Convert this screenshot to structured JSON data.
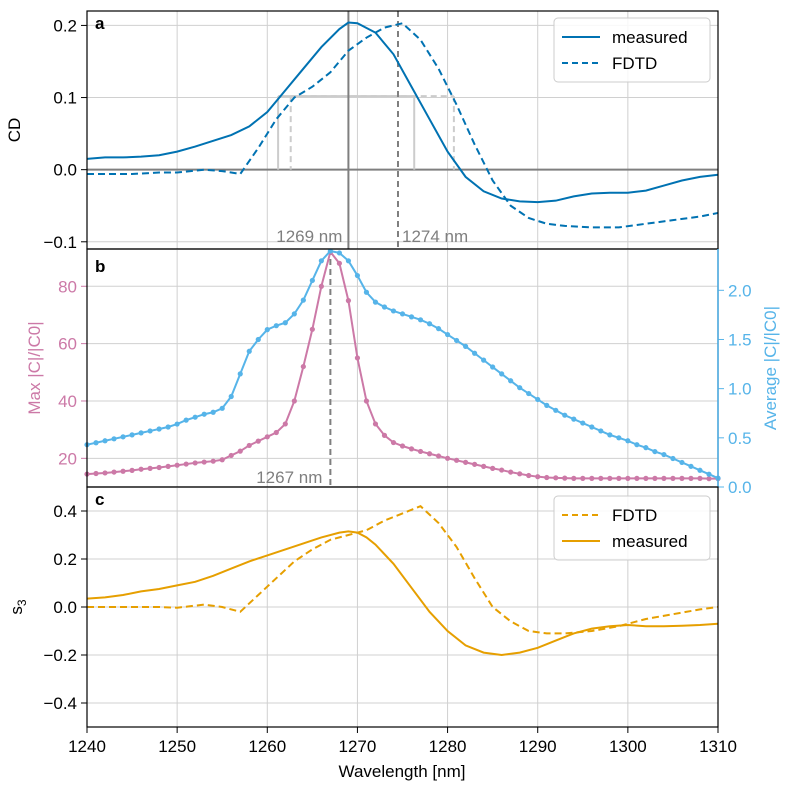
{
  "colors": {
    "blue": "#0072B2",
    "pink": "#CC79A7",
    "skyblue": "#56B4E9",
    "orange": "#E69F00",
    "gray": "#7f7f7f",
    "lightgray": "#cccccc"
  },
  "xaxis": {
    "label": "Wavelength [nm]",
    "ticks": [
      1240,
      1250,
      1260,
      1270,
      1280,
      1290,
      1300,
      1310
    ],
    "tick_labels": [
      "1240",
      "1250",
      "1260",
      "1270",
      "1280",
      "1290",
      "1300",
      "1310"
    ]
  },
  "panel_a": {
    "letter": "a",
    "annot_measured": "1269 nm",
    "annot_fdtd": "1274 nm",
    "legend": [
      "measured",
      "FDTD"
    ]
  },
  "panel_b": {
    "letter": "b",
    "annot": "1267 nm"
  },
  "panel_c": {
    "letter": "c",
    "legend": [
      "FDTD",
      "measured"
    ]
  },
  "chart_data": [
    {
      "type": "line",
      "panel": "a",
      "ylabel": "CD",
      "xlim": [
        1240,
        1310
      ],
      "ylim": [
        -0.11,
        0.22
      ],
      "yticks": [
        -0.1,
        0.0,
        0.1,
        0.2
      ],
      "ytick_labels": [
        "−0.1",
        "0.0",
        "0.1",
        "0.2"
      ],
      "grid": true,
      "legend_position": "top-right",
      "hlines": [
        0
      ],
      "peak_lines": {
        "measured": 1269,
        "FDTD": 1274.5
      },
      "half_max": {
        "measured": {
          "level": 0.102,
          "left": 1261.2,
          "right": 1276.3
        },
        "FDTD": {
          "level": 0.102,
          "left": 1262.6,
          "right": 1280.7
        }
      },
      "series": [
        {
          "name": "measured",
          "style": "solid",
          "x": [
            1240,
            1242,
            1244,
            1246,
            1248,
            1250,
            1252,
            1254,
            1256,
            1258,
            1260,
            1262,
            1264,
            1266,
            1268,
            1269,
            1270,
            1272,
            1274,
            1276,
            1278,
            1280,
            1282,
            1284,
            1286,
            1288,
            1290,
            1292,
            1294,
            1296,
            1298,
            1300,
            1302,
            1304,
            1306,
            1308,
            1310
          ],
          "y": [
            0.015,
            0.017,
            0.017,
            0.018,
            0.02,
            0.025,
            0.032,
            0.04,
            0.048,
            0.06,
            0.08,
            0.11,
            0.14,
            0.17,
            0.195,
            0.204,
            0.203,
            0.19,
            0.16,
            0.115,
            0.07,
            0.025,
            -0.01,
            -0.03,
            -0.04,
            -0.044,
            -0.045,
            -0.043,
            -0.037,
            -0.033,
            -0.032,
            -0.032,
            -0.029,
            -0.022,
            -0.015,
            -0.01,
            -0.007
          ]
        },
        {
          "name": "FDTD",
          "style": "dashed",
          "x": [
            1240,
            1245,
            1248,
            1250,
            1253,
            1255,
            1257,
            1259,
            1261,
            1263,
            1265,
            1267,
            1269,
            1271,
            1273,
            1275,
            1277,
            1279,
            1281,
            1283,
            1285,
            1287,
            1289,
            1291,
            1293,
            1296,
            1299,
            1302,
            1305,
            1308,
            1310
          ],
          "y": [
            -0.006,
            -0.006,
            -0.004,
            -0.004,
            0.0,
            -0.002,
            -0.006,
            0.03,
            0.07,
            0.1,
            0.115,
            0.135,
            0.165,
            0.183,
            0.197,
            0.203,
            0.18,
            0.14,
            0.09,
            0.035,
            -0.015,
            -0.05,
            -0.067,
            -0.075,
            -0.078,
            -0.08,
            -0.08,
            -0.075,
            -0.07,
            -0.065,
            -0.06
          ]
        }
      ]
    },
    {
      "type": "line",
      "panel": "b",
      "ylabel_left": "Max |C|/|C0|",
      "ylabel_right": "Average |C|/|C0|",
      "xlim": [
        1240,
        1310
      ],
      "ylim_left": [
        10,
        93
      ],
      "ylim_right": [
        0,
        2.42
      ],
      "yticks_left": [
        20,
        40,
        60,
        80
      ],
      "ytick_labels_left": [
        "20",
        "40",
        "60",
        "80"
      ],
      "yticks_right": [
        0,
        0.5,
        1.0,
        1.5,
        2.0
      ],
      "ytick_labels_right": [
        "0.0",
        "0.5",
        "1.0",
        "1.5",
        "2.0"
      ],
      "grid": true,
      "peak_line": 1267,
      "series": [
        {
          "name": "Max |C|/|C0|",
          "axis": "left",
          "x": [
            1240,
            1241,
            1242,
            1243,
            1244,
            1245,
            1246,
            1247,
            1248,
            1249,
            1250,
            1251,
            1252,
            1253,
            1254,
            1255,
            1256,
            1257,
            1258,
            1259,
            1260,
            1261,
            1262,
            1263,
            1264,
            1265,
            1266,
            1267,
            1268,
            1269,
            1270,
            1271,
            1272,
            1273,
            1274,
            1275,
            1276,
            1277,
            1278,
            1279,
            1280,
            1281,
            1282,
            1283,
            1284,
            1285,
            1286,
            1287,
            1288,
            1289,
            1290,
            1291,
            1292,
            1293,
            1294,
            1295,
            1296,
            1297,
            1298,
            1299,
            1300,
            1301,
            1302,
            1303,
            1304,
            1305,
            1306,
            1307,
            1308,
            1309,
            1310
          ],
          "y": [
            14.5,
            14.7,
            14.9,
            15.2,
            15.5,
            15.8,
            16.2,
            16.5,
            16.8,
            17.2,
            17.6,
            18.0,
            18.4,
            18.7,
            19.0,
            19.5,
            21.0,
            22.5,
            24.5,
            26.0,
            27.5,
            29.0,
            32.0,
            40.0,
            52.0,
            65.0,
            80.0,
            92.0,
            88.0,
            75.0,
            55.0,
            40.0,
            32.0,
            28.0,
            25.5,
            24.3,
            23.3,
            22.4,
            21.6,
            20.8,
            20.0,
            19.3,
            18.6,
            17.9,
            17.2,
            16.5,
            15.9,
            15.2,
            14.6,
            14.0,
            13.6,
            13.3,
            13.2,
            13.1,
            13.0,
            13.0,
            13.0,
            13.0,
            13.0,
            13.0,
            13.0,
            13.0,
            13.0,
            13.0,
            13.0,
            13.0,
            13.0,
            13.0,
            13.0,
            12.9,
            12.9
          ]
        },
        {
          "name": "Average |C|/|C0|",
          "axis": "right",
          "x": [
            1240,
            1241,
            1242,
            1243,
            1244,
            1245,
            1246,
            1247,
            1248,
            1249,
            1250,
            1251,
            1252,
            1253,
            1254,
            1255,
            1256,
            1257,
            1258,
            1259,
            1260,
            1261,
            1262,
            1263,
            1264,
            1265,
            1266,
            1267,
            1268,
            1269,
            1270,
            1271,
            1272,
            1273,
            1274,
            1275,
            1276,
            1277,
            1278,
            1279,
            1280,
            1281,
            1282,
            1283,
            1284,
            1285,
            1286,
            1287,
            1288,
            1289,
            1290,
            1291,
            1292,
            1293,
            1294,
            1295,
            1296,
            1297,
            1298,
            1299,
            1300,
            1301,
            1302,
            1303,
            1304,
            1305,
            1306,
            1307,
            1308,
            1309,
            1310
          ],
          "y": [
            0.43,
            0.45,
            0.47,
            0.49,
            0.51,
            0.53,
            0.55,
            0.57,
            0.59,
            0.61,
            0.64,
            0.68,
            0.71,
            0.74,
            0.76,
            0.8,
            0.92,
            1.15,
            1.38,
            1.5,
            1.6,
            1.64,
            1.67,
            1.76,
            1.9,
            2.1,
            2.3,
            2.4,
            2.38,
            2.3,
            2.15,
            1.98,
            1.88,
            1.83,
            1.79,
            1.76,
            1.73,
            1.7,
            1.66,
            1.61,
            1.55,
            1.49,
            1.43,
            1.36,
            1.29,
            1.22,
            1.15,
            1.08,
            1.01,
            0.95,
            0.89,
            0.83,
            0.78,
            0.73,
            0.69,
            0.65,
            0.61,
            0.57,
            0.53,
            0.5,
            0.47,
            0.43,
            0.4,
            0.36,
            0.33,
            0.29,
            0.25,
            0.21,
            0.17,
            0.13,
            0.09
          ]
        }
      ]
    },
    {
      "type": "line",
      "panel": "c",
      "ylabel": "s3",
      "xlim": [
        1240,
        1310
      ],
      "ylim": [
        -0.5,
        0.5
      ],
      "yticks": [
        -0.4,
        -0.2,
        0.0,
        0.2,
        0.4
      ],
      "ytick_labels": [
        "−0.4",
        "−0.2",
        "0.0",
        "0.2",
        "0.4"
      ],
      "grid": true,
      "legend_position": "top-right",
      "series": [
        {
          "name": "FDTD",
          "style": "dashed",
          "x": [
            1240,
            1245,
            1248,
            1250,
            1253,
            1255,
            1257,
            1259,
            1261,
            1263,
            1265,
            1267,
            1269,
            1271,
            1273,
            1275,
            1277,
            1279,
            1281,
            1283,
            1285,
            1287,
            1289,
            1291,
            1293,
            1296,
            1299,
            1302,
            1305,
            1308,
            1310
          ],
          "y": [
            0.0,
            0.0,
            0.0,
            -0.003,
            0.01,
            0.0,
            -0.02,
            0.05,
            0.12,
            0.19,
            0.24,
            0.28,
            0.3,
            0.32,
            0.36,
            0.39,
            0.42,
            0.35,
            0.25,
            0.12,
            0.0,
            -0.06,
            -0.1,
            -0.11,
            -0.11,
            -0.1,
            -0.08,
            -0.05,
            -0.03,
            -0.01,
            0.0
          ]
        },
        {
          "name": "measured",
          "style": "solid",
          "x": [
            1240,
            1242,
            1244,
            1246,
            1248,
            1250,
            1252,
            1254,
            1256,
            1258,
            1260,
            1262,
            1264,
            1266,
            1268,
            1269,
            1270,
            1271,
            1272,
            1274,
            1276,
            1278,
            1280,
            1282,
            1284,
            1286,
            1288,
            1290,
            1292,
            1294,
            1296,
            1298,
            1300,
            1302,
            1304,
            1306,
            1308,
            1310
          ],
          "y": [
            0.035,
            0.04,
            0.05,
            0.065,
            0.075,
            0.09,
            0.105,
            0.13,
            0.16,
            0.19,
            0.215,
            0.24,
            0.265,
            0.29,
            0.31,
            0.315,
            0.31,
            0.29,
            0.26,
            0.18,
            0.08,
            -0.02,
            -0.1,
            -0.16,
            -0.19,
            -0.2,
            -0.19,
            -0.17,
            -0.14,
            -0.11,
            -0.09,
            -0.08,
            -0.075,
            -0.08,
            -0.08,
            -0.078,
            -0.075,
            -0.07
          ]
        }
      ]
    }
  ]
}
